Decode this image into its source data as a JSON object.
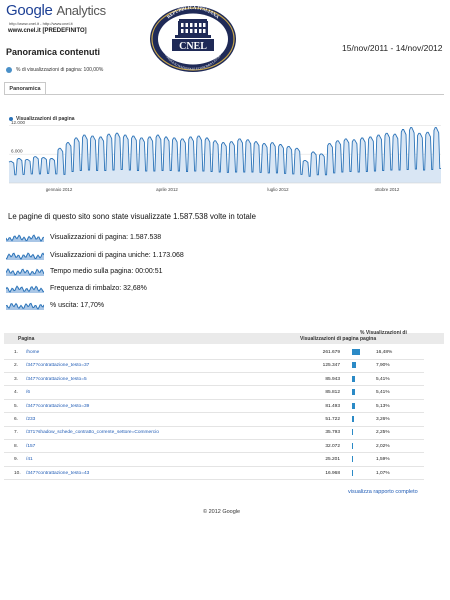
{
  "header": {
    "logo_google": "Google",
    "logo_analytics": "Analytics",
    "urls": "http://www.cnel.it - http://www.cnel.it",
    "profile": "www.cnel.it [PREDEFINITO]",
    "title": "Panoramica contenuti",
    "date_range": "15/nov/2011 - 14/nov/2012",
    "cnel_logo": {
      "top_text": "REPUBBLICA ITALIANA",
      "name": "CNEL",
      "bottom_text": "CONSIGLIO NAZIONALE ECONOMIA LAVORO"
    }
  },
  "segment": {
    "label": "% di visualizzazioni di pagina: 100,00%"
  },
  "tabs": [
    {
      "label": "Panoramica"
    }
  ],
  "chart_data": {
    "type": "line",
    "series": [
      {
        "name": "Visualizzazioni di pagina",
        "color": "#2b73b8"
      }
    ],
    "y_ticks": [
      "12.000",
      "6.000"
    ],
    "x_ticks": [
      "gennaio 2012",
      "aprile 2012",
      "luglio 2012",
      "ottobre 2012"
    ],
    "ylim": [
      0,
      12500
    ],
    "weekly_pattern": true,
    "weekly_high": [
      4600,
      5200,
      5000,
      5600,
      5400,
      5200,
      7400,
      8600,
      9600,
      10200,
      10000,
      9800,
      10400,
      10600,
      10200,
      10000,
      9600,
      9800,
      10200,
      9800,
      9600,
      9400,
      9800,
      10000,
      9600,
      9000,
      8600,
      8800,
      9400,
      9200,
      8800,
      8400,
      8600,
      8200,
      7800,
      7400,
      4800,
      6600,
      6200,
      8400,
      9000,
      9400,
      9200,
      9600,
      9800,
      10200,
      10600,
      10400,
      11400,
      11800,
      10600,
      10800,
      11800
    ],
    "weekly_low": [
      1700,
      1800,
      1900,
      1900,
      2000,
      1900,
      1800,
      2400,
      2600,
      2700,
      2600,
      2600,
      2700,
      2800,
      2700,
      2600,
      2500,
      2500,
      2600,
      2600,
      2500,
      2400,
      2500,
      2500,
      2400,
      2300,
      2200,
      2300,
      2300,
      2300,
      2200,
      2100,
      2100,
      2000,
      1900,
      1800,
      1400,
      1700,
      1700,
      2100,
      2300,
      2400,
      2300,
      2400,
      2500,
      2600,
      2700,
      2700,
      2800,
      2900,
      2700,
      2800,
      3000
    ]
  },
  "summary": "Le pagine di questo sito sono state visualizzate 1.587.538 volte in totale",
  "metrics": [
    {
      "label": "Visualizzazioni di pagina:",
      "value": "1.587.538"
    },
    {
      "label": "Visualizzazioni di pagina uniche:",
      "value": "1.173.068"
    },
    {
      "label": "Tempo medio sulla pagina:",
      "value": "00:00:51"
    },
    {
      "label": "Frequenza di rimbalzo:",
      "value": "32,68%"
    },
    {
      "label": "% uscita:",
      "value": "17,70%"
    }
  ],
  "table": {
    "col_page": "Pagina",
    "col_views": "Visualizzazioni di pagina",
    "col_pct": "% Visualizzazioni di pagina",
    "rows": [
      {
        "idx": "1.",
        "path": "/home",
        "views": "261.679",
        "pct": "16,48%",
        "share": 16.48
      },
      {
        "idx": "2.",
        "path": "/347?contrattazione_testo=37",
        "views": "125.347",
        "pct": "7,90%",
        "share": 7.9
      },
      {
        "idx": "3.",
        "path": "/347?contrattazione_testo=5",
        "views": "85.943",
        "pct": "5,41%",
        "share": 5.41
      },
      {
        "idx": "4.",
        "path": "/6",
        "views": "85.812",
        "pct": "5,41%",
        "share": 5.41
      },
      {
        "idx": "5.",
        "path": "/347?contrattazione_testo=39",
        "views": "81.493",
        "pct": "5,13%",
        "share": 5.13
      },
      {
        "idx": "6.",
        "path": "/233",
        "views": "51.722",
        "pct": "3,26%",
        "share": 3.26
      },
      {
        "idx": "7.",
        "path": "/371?shadow_schede_contratto_corrente_settore=Commercio",
        "views": "35.793",
        "pct": "2,25%",
        "share": 2.25
      },
      {
        "idx": "8.",
        "path": "/157",
        "views": "32.072",
        "pct": "2,02%",
        "share": 2.02
      },
      {
        "idx": "9.",
        "path": "/41",
        "views": "25.201",
        "pct": "1,59%",
        "share": 1.59
      },
      {
        "idx": "10.",
        "path": "/347?contrattazione_testo=43",
        "views": "16.968",
        "pct": "1,07%",
        "share": 1.07
      }
    ],
    "full_report": "visualizza rapporto completo"
  },
  "footer": "© 2012 Google"
}
